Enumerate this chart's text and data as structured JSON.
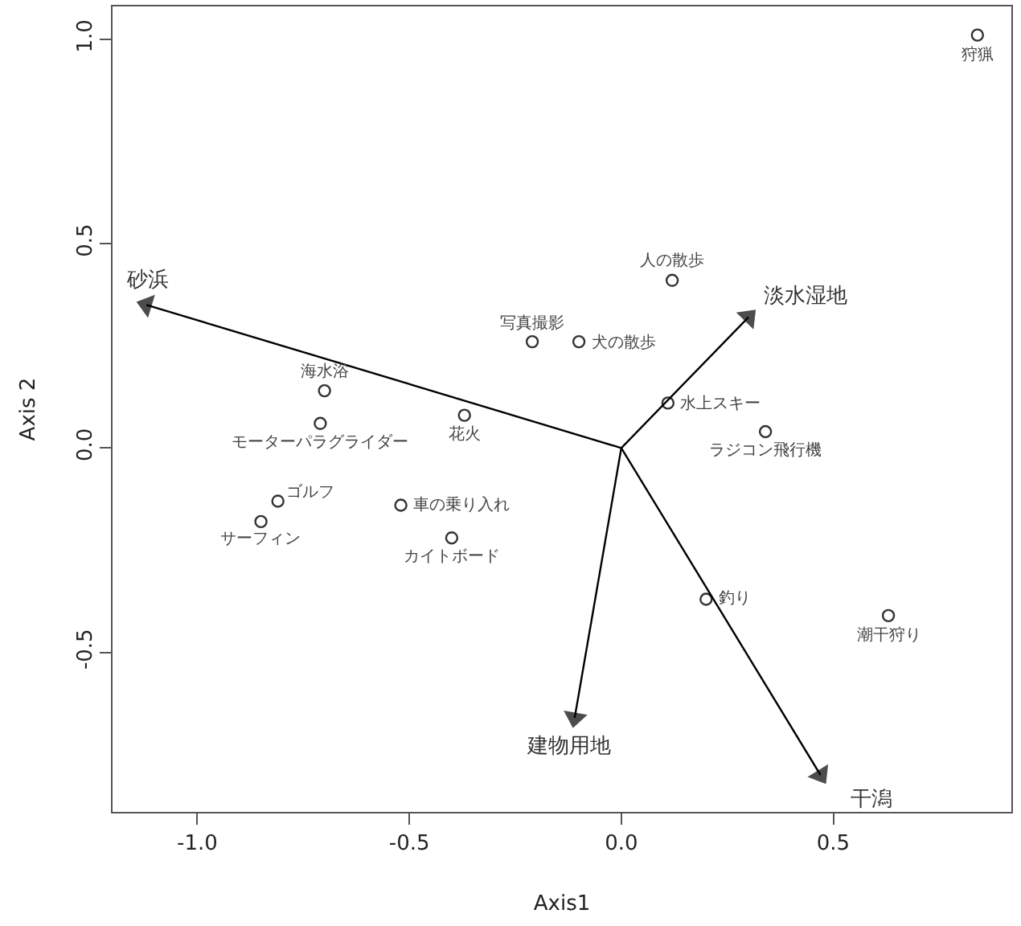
{
  "chart_data": {
    "type": "scatter",
    "xlabel": "Axis1",
    "ylabel": "Axis 2",
    "xlim": [
      -1.2,
      0.92
    ],
    "ylim": [
      -0.89,
      1.08
    ],
    "xticks": [
      {
        "value": -1.0,
        "label": "-1.0"
      },
      {
        "value": -0.5,
        "label": "-0.5"
      },
      {
        "value": 0.0,
        "label": "0.0"
      },
      {
        "value": 0.5,
        "label": "0.5"
      }
    ],
    "yticks": [
      {
        "value": -0.5,
        "label": "-0.5"
      },
      {
        "value": 0.0,
        "label": "0.0"
      },
      {
        "value": 0.5,
        "label": "0.5"
      },
      {
        "value": 1.0,
        "label": "1.0"
      }
    ],
    "grid": false,
    "marker": "circle",
    "series": [
      {
        "color": "#333333",
        "x": [
          0.84,
          0.12,
          -0.21,
          -0.1,
          0.11,
          0.34,
          -0.7,
          -0.71,
          -0.37,
          -0.81,
          -0.85,
          -0.52,
          -0.4,
          0.2,
          0.63
        ],
        "values": [
          1.01,
          0.41,
          0.26,
          0.26,
          0.11,
          0.04,
          0.14,
          0.06,
          0.08,
          -0.13,
          -0.18,
          -0.14,
          -0.22,
          -0.37,
          -0.41
        ]
      },
      {
        "type": "line",
        "marker": "triangle",
        "name": "砂浜",
        "color": "#000000",
        "x": [
          0,
          -1.12
        ],
        "values": [
          0,
          0.35
        ]
      },
      {
        "type": "line",
        "marker": "triangle",
        "name": "淡水湿地",
        "color": "#000000",
        "x": [
          0,
          0.3
        ],
        "values": [
          0,
          0.32
        ]
      },
      {
        "type": "line",
        "marker": "triangle",
        "name": "建物用地",
        "color": "#000000",
        "x": [
          0,
          -0.11
        ],
        "values": [
          0,
          -0.66
        ]
      },
      {
        "type": "line",
        "marker": "triangle",
        "name": "干潟",
        "color": "#000000",
        "x": [
          0,
          0.47
        ],
        "values": [
          0,
          -0.8
        ]
      }
    ],
    "annotations": [
      {
        "text": "狩猟",
        "x": 0.84,
        "y": 1.01
      },
      {
        "text": "人の散歩",
        "x": 0.12,
        "y": 0.41
      },
      {
        "text": "写真撮影",
        "x": -0.21,
        "y": 0.26
      },
      {
        "text": "犬の散歩",
        "x": -0.1,
        "y": 0.26
      },
      {
        "text": "水上スキー",
        "x": 0.11,
        "y": 0.11
      },
      {
        "text": "ラジコン飛行機",
        "x": 0.34,
        "y": 0.04
      },
      {
        "text": "海水浴",
        "x": -0.7,
        "y": 0.14
      },
      {
        "text": "モーターパラグライダー",
        "x": -0.71,
        "y": 0.06
      },
      {
        "text": "花火",
        "x": -0.37,
        "y": 0.08
      },
      {
        "text": "ゴルフ",
        "x": -0.81,
        "y": -0.13
      },
      {
        "text": "サーフィン",
        "x": -0.85,
        "y": -0.18
      },
      {
        "text": "車の乗り入れ",
        "x": -0.52,
        "y": -0.14
      },
      {
        "text": "カイトボード",
        "x": -0.4,
        "y": -0.22
      },
      {
        "text": "釣り",
        "x": 0.2,
        "y": -0.37
      },
      {
        "text": "潮干狩り",
        "x": 0.63,
        "y": -0.41
      }
    ]
  }
}
